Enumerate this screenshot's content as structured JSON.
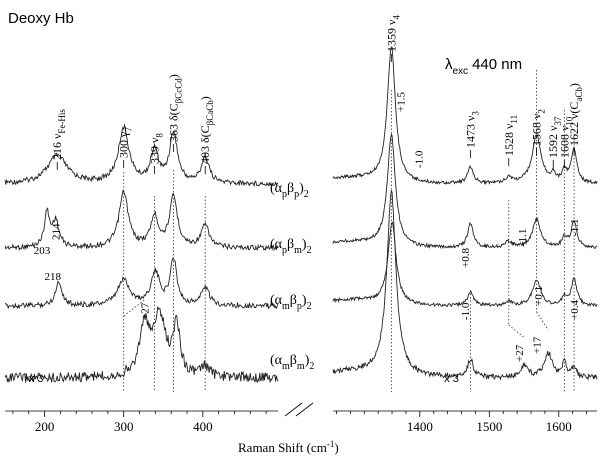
{
  "chart_data": {
    "type": "line",
    "title": "Deoxy Hb",
    "excitation_label": "λexc 440 nm",
    "excitation": {
      "symbol": "λ",
      "sub": "exc",
      "value": "440 nm"
    },
    "xlabel": "Raman Shift (cm⁻¹)",
    "xlabel_parts": {
      "text": "Raman Shift (cm",
      "sup": "-1",
      "close": ")"
    },
    "axis_break": true,
    "x_segments": [
      {
        "range": [
          150,
          495
        ],
        "ticks": [
          200,
          300,
          400
        ]
      },
      {
        "range": [
          1275,
          1655
        ],
        "ticks": [
          1400,
          1500,
          1600
        ]
      }
    ],
    "series": [
      {
        "name": "(αpβp)2",
        "name_parts": {
          "pre": "(α",
          "s1": "p",
          "mid": "β",
          "s2": "p",
          "post": ")",
          "s3": "2"
        }
      },
      {
        "name": "(αpβm)2",
        "name_parts": {
          "pre": "(α",
          "s1": "p",
          "mid": "β",
          "s2": "m",
          "post": ")",
          "s3": "2"
        }
      },
      {
        "name": "(αmβp)2",
        "name_parts": {
          "pre": "(α",
          "s1": "m",
          "mid": "β",
          "s2": "p",
          "post": ")",
          "s3": "2"
        }
      },
      {
        "name": "(αmβm)2",
        "name_parts": {
          "pre": "(α",
          "s1": "m",
          "mid": "β",
          "s2": "m",
          "post": ")",
          "s3": "2"
        }
      }
    ],
    "peak_labels": [
      {
        "x": 216,
        "text": "216 νFe-His",
        "num": "216",
        "sym": "ν",
        "sub": "Fe-His"
      },
      {
        "x": 300,
        "text": "300 γ7",
        "num": "300",
        "sym": "γ",
        "sub": "7"
      },
      {
        "x": 339,
        "text": "339 ν8",
        "num": "339",
        "sym": "ν",
        "sub": "8"
      },
      {
        "x": 363,
        "text": "363 δ(CβCcCd)",
        "num": "363",
        "sym": "δ(C",
        "sub": "βCcCd",
        "post": ")"
      },
      {
        "x": 403,
        "text": "403 δ(CβCaCb)",
        "num": "403",
        "sym": "δ(C",
        "sub": "βCaCb",
        "post": ")"
      },
      {
        "x": 1359,
        "text": "1359 ν4",
        "num": "1359",
        "sym": "ν",
        "sub": "4"
      },
      {
        "x": 1473,
        "text": "1473 ν3",
        "num": "1473",
        "sym": "ν",
        "sub": "3"
      },
      {
        "x": 1528,
        "text": "1528 ν11",
        "num": "1528",
        "sym": "ν",
        "sub": "11"
      },
      {
        "x": 1568,
        "text": "1568 ν2",
        "num": "1568",
        "sym": "ν",
        "sub": "2"
      },
      {
        "x": 1592,
        "text": "1592 ν37",
        "num": "1592",
        "sym": "ν",
        "sub": "37"
      },
      {
        "x": 1608,
        "text": "1608 ν10",
        "num": "1608",
        "sym": "ν",
        "sub": "10"
      },
      {
        "x": 1622,
        "text": "1622 ν(CaCb)",
        "num": "1622",
        "sym": "ν(C",
        "sub": "aCb",
        "post": ")"
      }
    ],
    "annotations": [
      {
        "text": "203",
        "series": 1,
        "x": 203
      },
      {
        "text": "214",
        "series": 1,
        "x": 214
      },
      {
        "text": "218",
        "series": 2,
        "x": 218
      },
      {
        "text": "+27",
        "series": 3,
        "x": 326
      },
      {
        "text": "+1.5",
        "series": 0,
        "x": 1372
      },
      {
        "text": "-1.0",
        "series": 0,
        "x": 1398
      },
      {
        "text": "+0.8",
        "series": 1,
        "x": 1465
      },
      {
        "text": "-1.1",
        "series": 1,
        "x": 1547
      },
      {
        "text": "-1.1",
        "series": 1,
        "x": 1622
      },
      {
        "text": "-1.0",
        "series": 2,
        "x": 1465
      },
      {
        "text": "+0.1",
        "series": 2,
        "x": 1570
      },
      {
        "text": "+0.4",
        "series": 2,
        "x": 1622
      },
      {
        "text": "+27",
        "series": 3,
        "x": 1543
      },
      {
        "text": "+17",
        "series": 3,
        "x": 1568
      }
    ],
    "scale_labels": [
      {
        "text": "x 3",
        "segment": 0,
        "x": 180
      },
      {
        "text": "x 3",
        "segment": 1,
        "x": 1435
      }
    ],
    "grid": false,
    "legend": "none"
  }
}
